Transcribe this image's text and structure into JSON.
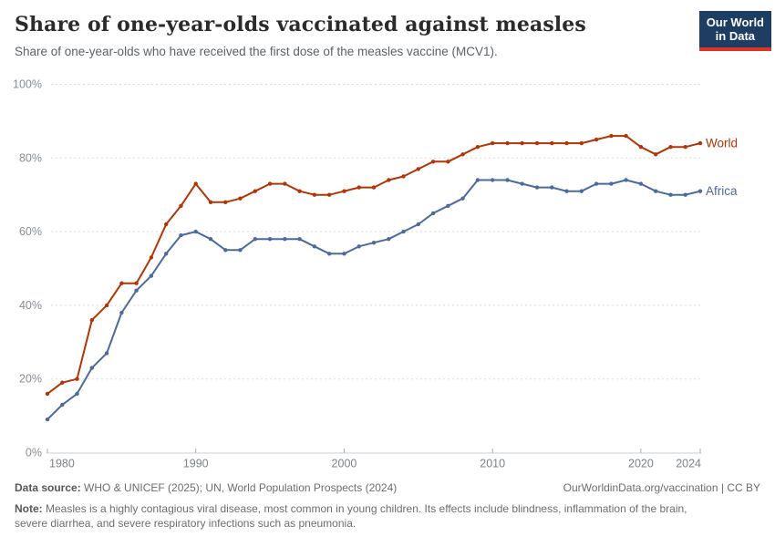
{
  "header": {
    "title": "Share of one-year-olds vaccinated against measles",
    "subtitle": "Share of one-year-olds who have received the first dose of the measles vaccine (MCV1).",
    "logo": {
      "line1": "Our World",
      "line2": "in Data"
    }
  },
  "chart_data": {
    "type": "line",
    "title": "Share of one-year-olds vaccinated against measles",
    "xlabel": "",
    "ylabel": "",
    "xlim": [
      1980,
      2024
    ],
    "ylim": [
      0,
      100
    ],
    "grid": "horizontal-dashed",
    "legend_position": "right-of-line-ends",
    "x": [
      1980,
      1981,
      1982,
      1983,
      1984,
      1985,
      1986,
      1987,
      1988,
      1989,
      1990,
      1991,
      1992,
      1993,
      1994,
      1995,
      1996,
      1997,
      1998,
      1999,
      2000,
      2001,
      2002,
      2003,
      2004,
      2005,
      2006,
      2007,
      2008,
      2009,
      2010,
      2011,
      2012,
      2013,
      2014,
      2015,
      2016,
      2017,
      2018,
      2019,
      2020,
      2021,
      2022,
      2023,
      2024
    ],
    "series": [
      {
        "name": "World",
        "color": "#b13507",
        "values": [
          16,
          19,
          20,
          36,
          40,
          46,
          46,
          53,
          62,
          67,
          73,
          68,
          68,
          69,
          71,
          73,
          73,
          71,
          70,
          70,
          71,
          72,
          72,
          74,
          75,
          77,
          79,
          79,
          81,
          83,
          84,
          84,
          84,
          84,
          84,
          84,
          84,
          85,
          86,
          86,
          83,
          81,
          83,
          83,
          84
        ]
      },
      {
        "name": "Africa",
        "color": "#4c6a9c",
        "values": [
          9,
          13,
          16,
          23,
          27,
          38,
          44,
          48,
          54,
          59,
          60,
          58,
          55,
          55,
          58,
          58,
          58,
          58,
          56,
          54,
          54,
          56,
          57,
          58,
          60,
          62,
          65,
          67,
          69,
          74,
          74,
          74,
          73,
          72,
          72,
          71,
          71,
          73,
          73,
          74,
          73,
          71,
          70,
          70,
          71
        ]
      }
    ],
    "x_ticks": [
      1980,
      1990,
      2000,
      2010,
      2020,
      2024
    ],
    "x_tick_labels": [
      "1980",
      "1990",
      "2000",
      "2010",
      "2020",
      "2024"
    ],
    "y_ticks": [
      0,
      20,
      40,
      60,
      80,
      100
    ],
    "y_tick_labels": [
      "0%",
      "20%",
      "40%",
      "60%",
      "80%",
      "100%"
    ]
  },
  "footer": {
    "source_label": "Data source:",
    "source_text": "WHO & UNICEF (2025); UN, World Population Prospects (2024)",
    "link_text": "OurWorldinData.org/vaccination | CC BY",
    "note_label": "Note:",
    "note_text": "Measles is a highly contagious viral disease, most common in young children. Its effects include blindness, inflammation of the brain, severe diarrhea, and severe respiratory infections such as pneumonia."
  }
}
